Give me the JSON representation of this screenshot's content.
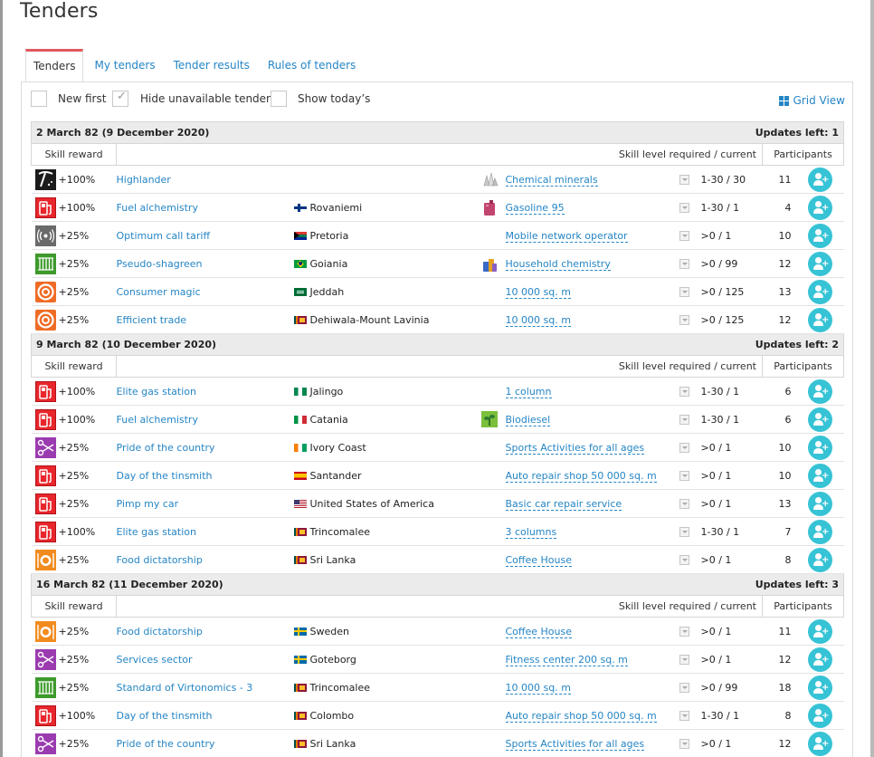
{
  "page_title": "Tenders",
  "tabs": [
    {
      "label": "Tenders",
      "active": true
    },
    {
      "label": "My tenders",
      "active": false
    },
    {
      "label": "Tender results",
      "active": false
    },
    {
      "label": "Rules of tenders",
      "active": false
    }
  ],
  "filters": {
    "new_first": {
      "label": "New first",
      "checked": false
    },
    "hide_unavailable": {
      "label": "Hide unavailable tenders",
      "checked": true
    },
    "show_today": {
      "label": "Show today’s",
      "checked": false
    },
    "grid_view_label": "Grid View"
  },
  "columns": {
    "skill_reward": "Skill reward",
    "skill_level": "Skill level required / current",
    "participants": "Participants"
  },
  "groups": [
    {
      "date": "2 March 82 (9 December 2020)",
      "updates_left": "Updates left: 1",
      "rows": [
        {
          "skill_icon": "pickaxe-icon",
          "reward": "+100%",
          "name": "Highlander",
          "flag": "",
          "city": "",
          "product_icon": "minerals-icon",
          "product": "Chemical minerals",
          "level": "1-30 / 30",
          "participants": "11"
        },
        {
          "skill_icon": "fuel-pump-icon",
          "reward": "+100%",
          "name": "Fuel alchemistry",
          "flag": "fi",
          "city": "Rovaniemi",
          "product_icon": "jerrycan-icon",
          "product": "Gasoline 95",
          "level": "1-30 / 1",
          "participants": "4"
        },
        {
          "skill_icon": "signal-tower-icon",
          "reward": "+25%",
          "name": "Optimum call tariff",
          "flag": "za",
          "city": "Pretoria",
          "product_icon": "",
          "product": "Mobile network operator",
          "level": ">0 / 1",
          "participants": "10"
        },
        {
          "skill_icon": "fence-icon",
          "reward": "+25%",
          "name": "Pseudo-shagreen",
          "flag": "br",
          "city": "Goiania",
          "product_icon": "chemistry-icon",
          "product": "Household chemistry",
          "level": ">0 / 99",
          "participants": "12"
        },
        {
          "skill_icon": "target-icon",
          "reward": "+25%",
          "name": "Consumer magic",
          "flag": "sa",
          "city": "Jeddah",
          "product_icon": "",
          "product": "10 000 sq. m",
          "level": ">0 / 125",
          "participants": "13"
        },
        {
          "skill_icon": "target-icon",
          "reward": "+25%",
          "name": "Efficient trade",
          "flag": "lk",
          "city": "Dehiwala-Mount Lavinia",
          "product_icon": "",
          "product": "10 000 sq. m",
          "level": ">0 / 125",
          "participants": "12"
        }
      ]
    },
    {
      "date": "9 March 82 (10 December 2020)",
      "updates_left": "Updates left: 2",
      "rows": [
        {
          "skill_icon": "fuel-pump-icon",
          "reward": "+100%",
          "name": "Elite gas station",
          "flag": "ng",
          "city": "Jalingo",
          "product_icon": "",
          "product": "1 column",
          "level": "1-30 / 1",
          "participants": "6"
        },
        {
          "skill_icon": "fuel-pump-icon",
          "reward": "+100%",
          "name": "Fuel alchemistry",
          "flag": "it",
          "city": "Catania",
          "product_icon": "plant-icon",
          "product": "Biodiesel",
          "level": "1-30 / 1",
          "participants": "6"
        },
        {
          "skill_icon": "scissors-icon",
          "reward": "+25%",
          "name": "Pride of the country",
          "flag": "ci",
          "city": "Ivory Coast",
          "product_icon": "",
          "product": "Sports Activities for all ages",
          "level": ">0 / 1",
          "participants": "10"
        },
        {
          "skill_icon": "fuel-pump-icon",
          "reward": "+25%",
          "name": "Day of the tinsmith",
          "flag": "es",
          "city": "Santander",
          "product_icon": "",
          "product": "Auto repair shop 50 000 sq. m",
          "level": ">0 / 1",
          "participants": "10"
        },
        {
          "skill_icon": "fuel-pump-icon",
          "reward": "+25%",
          "name": "Pimp my car",
          "flag": "us",
          "city": "United States of America",
          "product_icon": "",
          "product": "Basic car repair service",
          "level": ">0 / 1",
          "participants": "13"
        },
        {
          "skill_icon": "fuel-pump-icon",
          "reward": "+100%",
          "name": "Elite gas station",
          "flag": "lk",
          "city": "Trincomalee",
          "product_icon": "",
          "product": "3 columns",
          "level": "1-30 / 1",
          "participants": "7"
        },
        {
          "skill_icon": "plate-icon",
          "reward": "+25%",
          "name": "Food dictatorship",
          "flag": "lk",
          "city": "Sri Lanka",
          "product_icon": "",
          "product": "Coffee House",
          "level": ">0 / 1",
          "participants": "8"
        }
      ]
    },
    {
      "date": "16 March 82 (11 December 2020)",
      "updates_left": "Updates left: 3",
      "rows": [
        {
          "skill_icon": "plate-icon",
          "reward": "+25%",
          "name": "Food dictatorship",
          "flag": "se",
          "city": "Sweden",
          "product_icon": "",
          "product": "Coffee House",
          "level": ">0 / 1",
          "participants": "11"
        },
        {
          "skill_icon": "scissors-icon",
          "reward": "+25%",
          "name": "Services sector",
          "flag": "se",
          "city": "Goteborg",
          "product_icon": "",
          "product": "Fitness center 200 sq. m",
          "level": ">0 / 1",
          "participants": "12"
        },
        {
          "skill_icon": "fence-icon",
          "reward": "+25%",
          "name": "Standard of Virtonomics - 3",
          "flag": "lk",
          "city": "Trincomalee",
          "product_icon": "",
          "product": "10 000 sq. m",
          "level": ">0 / 99",
          "participants": "18"
        },
        {
          "skill_icon": "fuel-pump-icon",
          "reward": "+100%",
          "name": "Day of the tinsmith",
          "flag": "lk",
          "city": "Colombo",
          "product_icon": "",
          "product": "Auto repair shop 50 000 sq. m",
          "level": "1-30 / 1",
          "participants": "8"
        },
        {
          "skill_icon": "scissors-icon",
          "reward": "+25%",
          "name": "Pride of the country",
          "flag": "lk",
          "city": "Sri Lanka",
          "product_icon": "",
          "product": "Sports Activities for all ages",
          "level": ">0 / 1",
          "participants": "12"
        }
      ]
    }
  ]
}
